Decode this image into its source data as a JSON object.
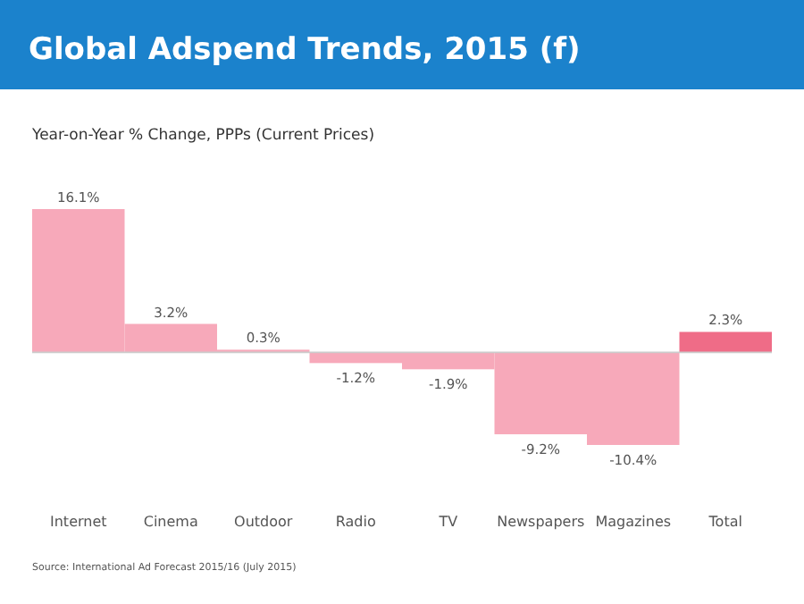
{
  "chart_data": {
    "type": "bar",
    "title": "Global Adspend Trends, 2015 (f)",
    "subtitle": "Year-on-Year % Change, PPPs (Current Prices)",
    "categories": [
      "Internet",
      "Cinema",
      "Outdoor",
      "Radio",
      "TV",
      "Newspapers",
      "Magazines",
      "Total"
    ],
    "values": [
      16.1,
      3.2,
      0.3,
      -1.2,
      -1.9,
      -9.2,
      -10.4,
      2.3
    ],
    "colors": [
      "#f7a9ba",
      "#f7a9ba",
      "#f7a9ba",
      "#f7a9ba",
      "#f7a9ba",
      "#f7a9ba",
      "#f7a9ba",
      "#ef6c87"
    ],
    "value_labels": [
      "16.1%",
      "3.2%",
      "0.3%",
      "-1.2%",
      "-1.9%",
      "-9.2%",
      "-10.4%",
      "2.3%"
    ],
    "annotations": [
      "Source: International Ad Forecast 2015/16 (July 2015)"
    ]
  }
}
